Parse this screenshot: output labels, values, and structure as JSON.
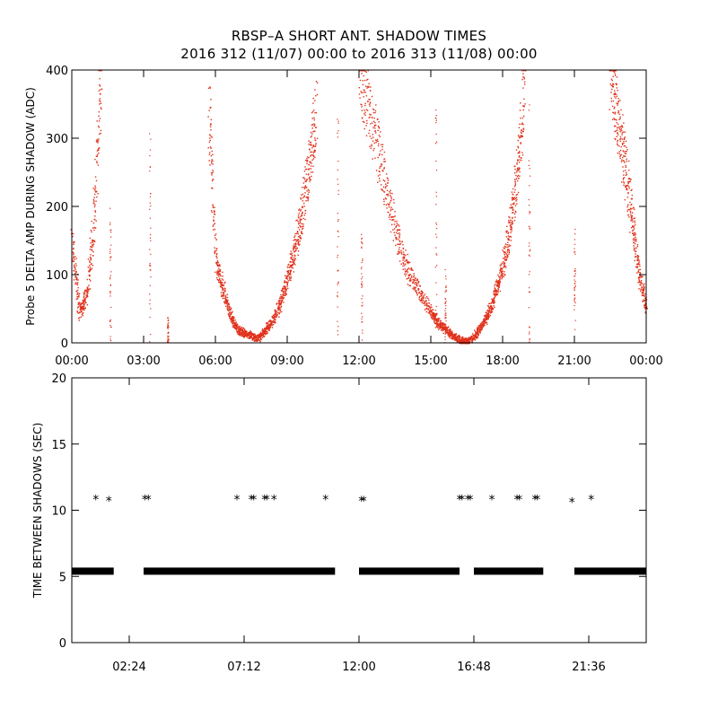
{
  "title": "RBSP–A SHORT ANT. SHADOW TIMES",
  "subtitle": "2016 312 (11/07) 00:00 to 2016 313 (11/08) 00:00",
  "colors": {
    "top_points": "#e0301a",
    "bottom_points": "#000000",
    "axes": "#000000"
  },
  "chart_data": [
    {
      "type": "scatter",
      "ylabel": "Probe 5 DELTA AMP DURING SHADOW (ADC)",
      "xlim": [
        0,
        24
      ],
      "ylim": [
        0,
        400
      ],
      "x_ticks": [
        "00:00",
        "03:00",
        "06:00",
        "09:00",
        "12:00",
        "15:00",
        "18:00",
        "21:00",
        "00:00"
      ],
      "y_ticks": [
        "0",
        "100",
        "200",
        "300",
        "400"
      ],
      "marker": "dot",
      "x_unit": "hours",
      "x_values": [
        0.0,
        0.3,
        0.6,
        0.9,
        1.2,
        5.7,
        6.0,
        6.3,
        6.6,
        6.9,
        7.2,
        7.5,
        7.8,
        8.1,
        8.4,
        8.7,
        9.0,
        9.3,
        9.6,
        9.9,
        10.2,
        12.0,
        12.5,
        13.0,
        13.5,
        14.0,
        14.5,
        15.0,
        15.3,
        15.6,
        15.9,
        16.2,
        16.5,
        16.8,
        17.1,
        17.4,
        17.7,
        18.0,
        18.3,
        18.6,
        18.9,
        22.5,
        22.8,
        23.1,
        23.4,
        23.7,
        24.0
      ],
      "y_values": [
        150,
        45,
        70,
        170,
        400,
        350,
        120,
        80,
        40,
        20,
        15,
        10,
        8,
        20,
        35,
        60,
        95,
        135,
        190,
        260,
        340,
        400,
        330,
        250,
        160,
        110,
        75,
        45,
        30,
        20,
        12,
        5,
        2,
        10,
        25,
        45,
        75,
        110,
        170,
        250,
        380,
        400,
        330,
        260,
        180,
        100,
        50
      ],
      "spike_x_values": [
        1.6,
        3.25,
        4.0,
        11.1,
        12.1,
        15.2,
        15.6,
        19.1,
        21.0
      ],
      "spike_y_values": [
        200,
        330,
        40,
        330,
        160,
        360,
        110,
        350,
        180
      ]
    },
    {
      "type": "scatter",
      "ylabel": "TIME BETWEEN SHADOWS (SEC)",
      "xlim": [
        0,
        24
      ],
      "ylim": [
        0,
        20
      ],
      "x_ticks": [
        "02:24",
        "07:12",
        "12:00",
        "16:48",
        "21:36"
      ],
      "y_ticks": [
        "0",
        "5",
        "10",
        "15",
        "20"
      ],
      "marker": "asterisk",
      "x_unit": "hours",
      "baseline_value": 5.4,
      "baseline_ranges": [
        [
          0.0,
          1.75
        ],
        [
          3.0,
          11.0
        ],
        [
          12.0,
          16.2
        ],
        [
          16.8,
          19.7
        ],
        [
          21.0,
          24.0
        ]
      ],
      "outlier_x": [
        1.0,
        1.55,
        3.05,
        3.2,
        6.9,
        7.5,
        7.6,
        8.05,
        8.15,
        8.45,
        10.6,
        12.1,
        12.2,
        16.2,
        16.3,
        16.55,
        16.65,
        17.55,
        18.6,
        18.7,
        19.35,
        19.45,
        20.9,
        21.7
      ],
      "outlier_y": [
        10.8,
        10.7,
        10.8,
        10.8,
        10.8,
        10.8,
        10.8,
        10.8,
        10.8,
        10.8,
        10.8,
        10.7,
        10.7,
        10.8,
        10.8,
        10.8,
        10.8,
        10.8,
        10.8,
        10.8,
        10.8,
        10.8,
        10.6,
        10.8
      ]
    }
  ]
}
